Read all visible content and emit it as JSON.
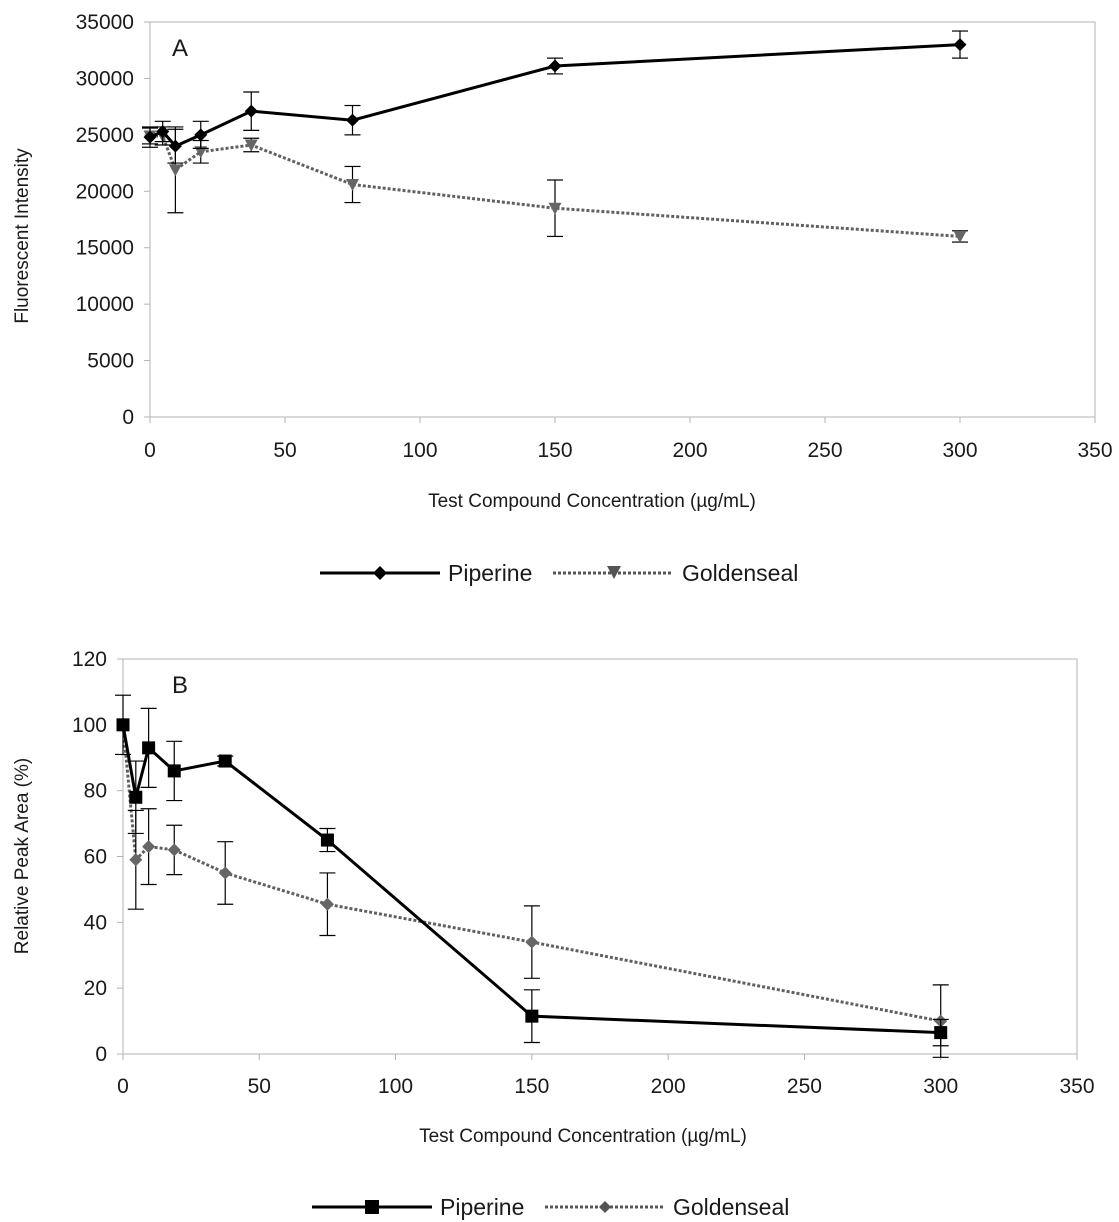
{
  "chart_data": [
    {
      "type": "line",
      "panel_label": "A",
      "xlabel": "Test Compound Concentration (µg/mL)",
      "ylabel": "Fluorescent Intensity",
      "xlim": [
        0,
        350
      ],
      "ylim": [
        0,
        35000
      ],
      "xticks": [
        0,
        50,
        100,
        150,
        200,
        250,
        300,
        350
      ],
      "yticks": [
        0,
        5000,
        10000,
        15000,
        20000,
        25000,
        30000,
        35000
      ],
      "grid": false,
      "legend_position": "bottom-center",
      "series": [
        {
          "name": "Piperine",
          "color": "#000000",
          "line_style": "solid",
          "marker": "diamond",
          "points": [
            {
              "x": 0,
              "y": 24800,
              "err": 900
            },
            {
              "x": 4.7,
              "y": 25300,
              "err": 900
            },
            {
              "x": 9.4,
              "y": 24000,
              "err": 1500
            },
            {
              "x": 18.8,
              "y": 25000,
              "err": 1200
            },
            {
              "x": 37.5,
              "y": 27100,
              "err": 1700
            },
            {
              "x": 75,
              "y": 26300,
              "err": 1300
            },
            {
              "x": 150,
              "y": 31100,
              "err": 700
            },
            {
              "x": 300,
              "y": 33000,
              "err": 1200
            }
          ]
        },
        {
          "name": "Goldenseal",
          "color": "#666666",
          "line_style": "dotted",
          "marker": "triangle-down",
          "points": [
            {
              "x": 0,
              "y": 24900,
              "err": 700
            },
            {
              "x": 4.7,
              "y": 24900,
              "err": 800
            },
            {
              "x": 9.4,
              "y": 21900,
              "err": 3800
            },
            {
              "x": 18.8,
              "y": 23500,
              "err": 1000
            },
            {
              "x": 37.5,
              "y": 24100,
              "err": 600
            },
            {
              "x": 75,
              "y": 20600,
              "err": 1600
            },
            {
              "x": 150,
              "y": 18500,
              "err": 2500
            },
            {
              "x": 300,
              "y": 16000,
              "err": 500
            }
          ]
        }
      ]
    },
    {
      "type": "line",
      "panel_label": "B",
      "xlabel": "Test Compound Concentration (µg/mL)",
      "ylabel": "Relative Peak Area (%)",
      "xlim": [
        0,
        350
      ],
      "ylim": [
        0,
        120
      ],
      "xticks": [
        0,
        50,
        100,
        150,
        200,
        250,
        300,
        350
      ],
      "yticks": [
        0,
        20,
        40,
        60,
        80,
        100,
        120
      ],
      "grid": false,
      "legend_position": "bottom-center",
      "series": [
        {
          "name": "Piperine",
          "color": "#000000",
          "line_style": "solid",
          "marker": "square",
          "points": [
            {
              "x": 0,
              "y": 100,
              "err": 9
            },
            {
              "x": 4.7,
              "y": 78,
              "err": 11
            },
            {
              "x": 9.4,
              "y": 93,
              "err": 12
            },
            {
              "x": 18.8,
              "y": 86,
              "err": 9
            },
            {
              "x": 37.5,
              "y": 89,
              "err": 1.5
            },
            {
              "x": 75,
              "y": 65,
              "err": 3.5
            },
            {
              "x": 150,
              "y": 11.5,
              "err": 8
            },
            {
              "x": 300,
              "y": 6.5,
              "err": 4
            }
          ]
        },
        {
          "name": "Goldenseal",
          "color": "#666666",
          "line_style": "dotted",
          "marker": "diamond",
          "points": [
            {
              "x": 0,
              "y": 100,
              "err": 0
            },
            {
              "x": 4.7,
              "y": 59,
              "err": 15
            },
            {
              "x": 9.4,
              "y": 63,
              "err": 11.5
            },
            {
              "x": 18.8,
              "y": 62,
              "err": 7.5
            },
            {
              "x": 37.5,
              "y": 55,
              "err": 9.5
            },
            {
              "x": 75,
              "y": 45.5,
              "err": 9.5
            },
            {
              "x": 150,
              "y": 34,
              "err": 11
            },
            {
              "x": 300,
              "y": 10,
              "err": 11
            }
          ]
        }
      ]
    }
  ]
}
